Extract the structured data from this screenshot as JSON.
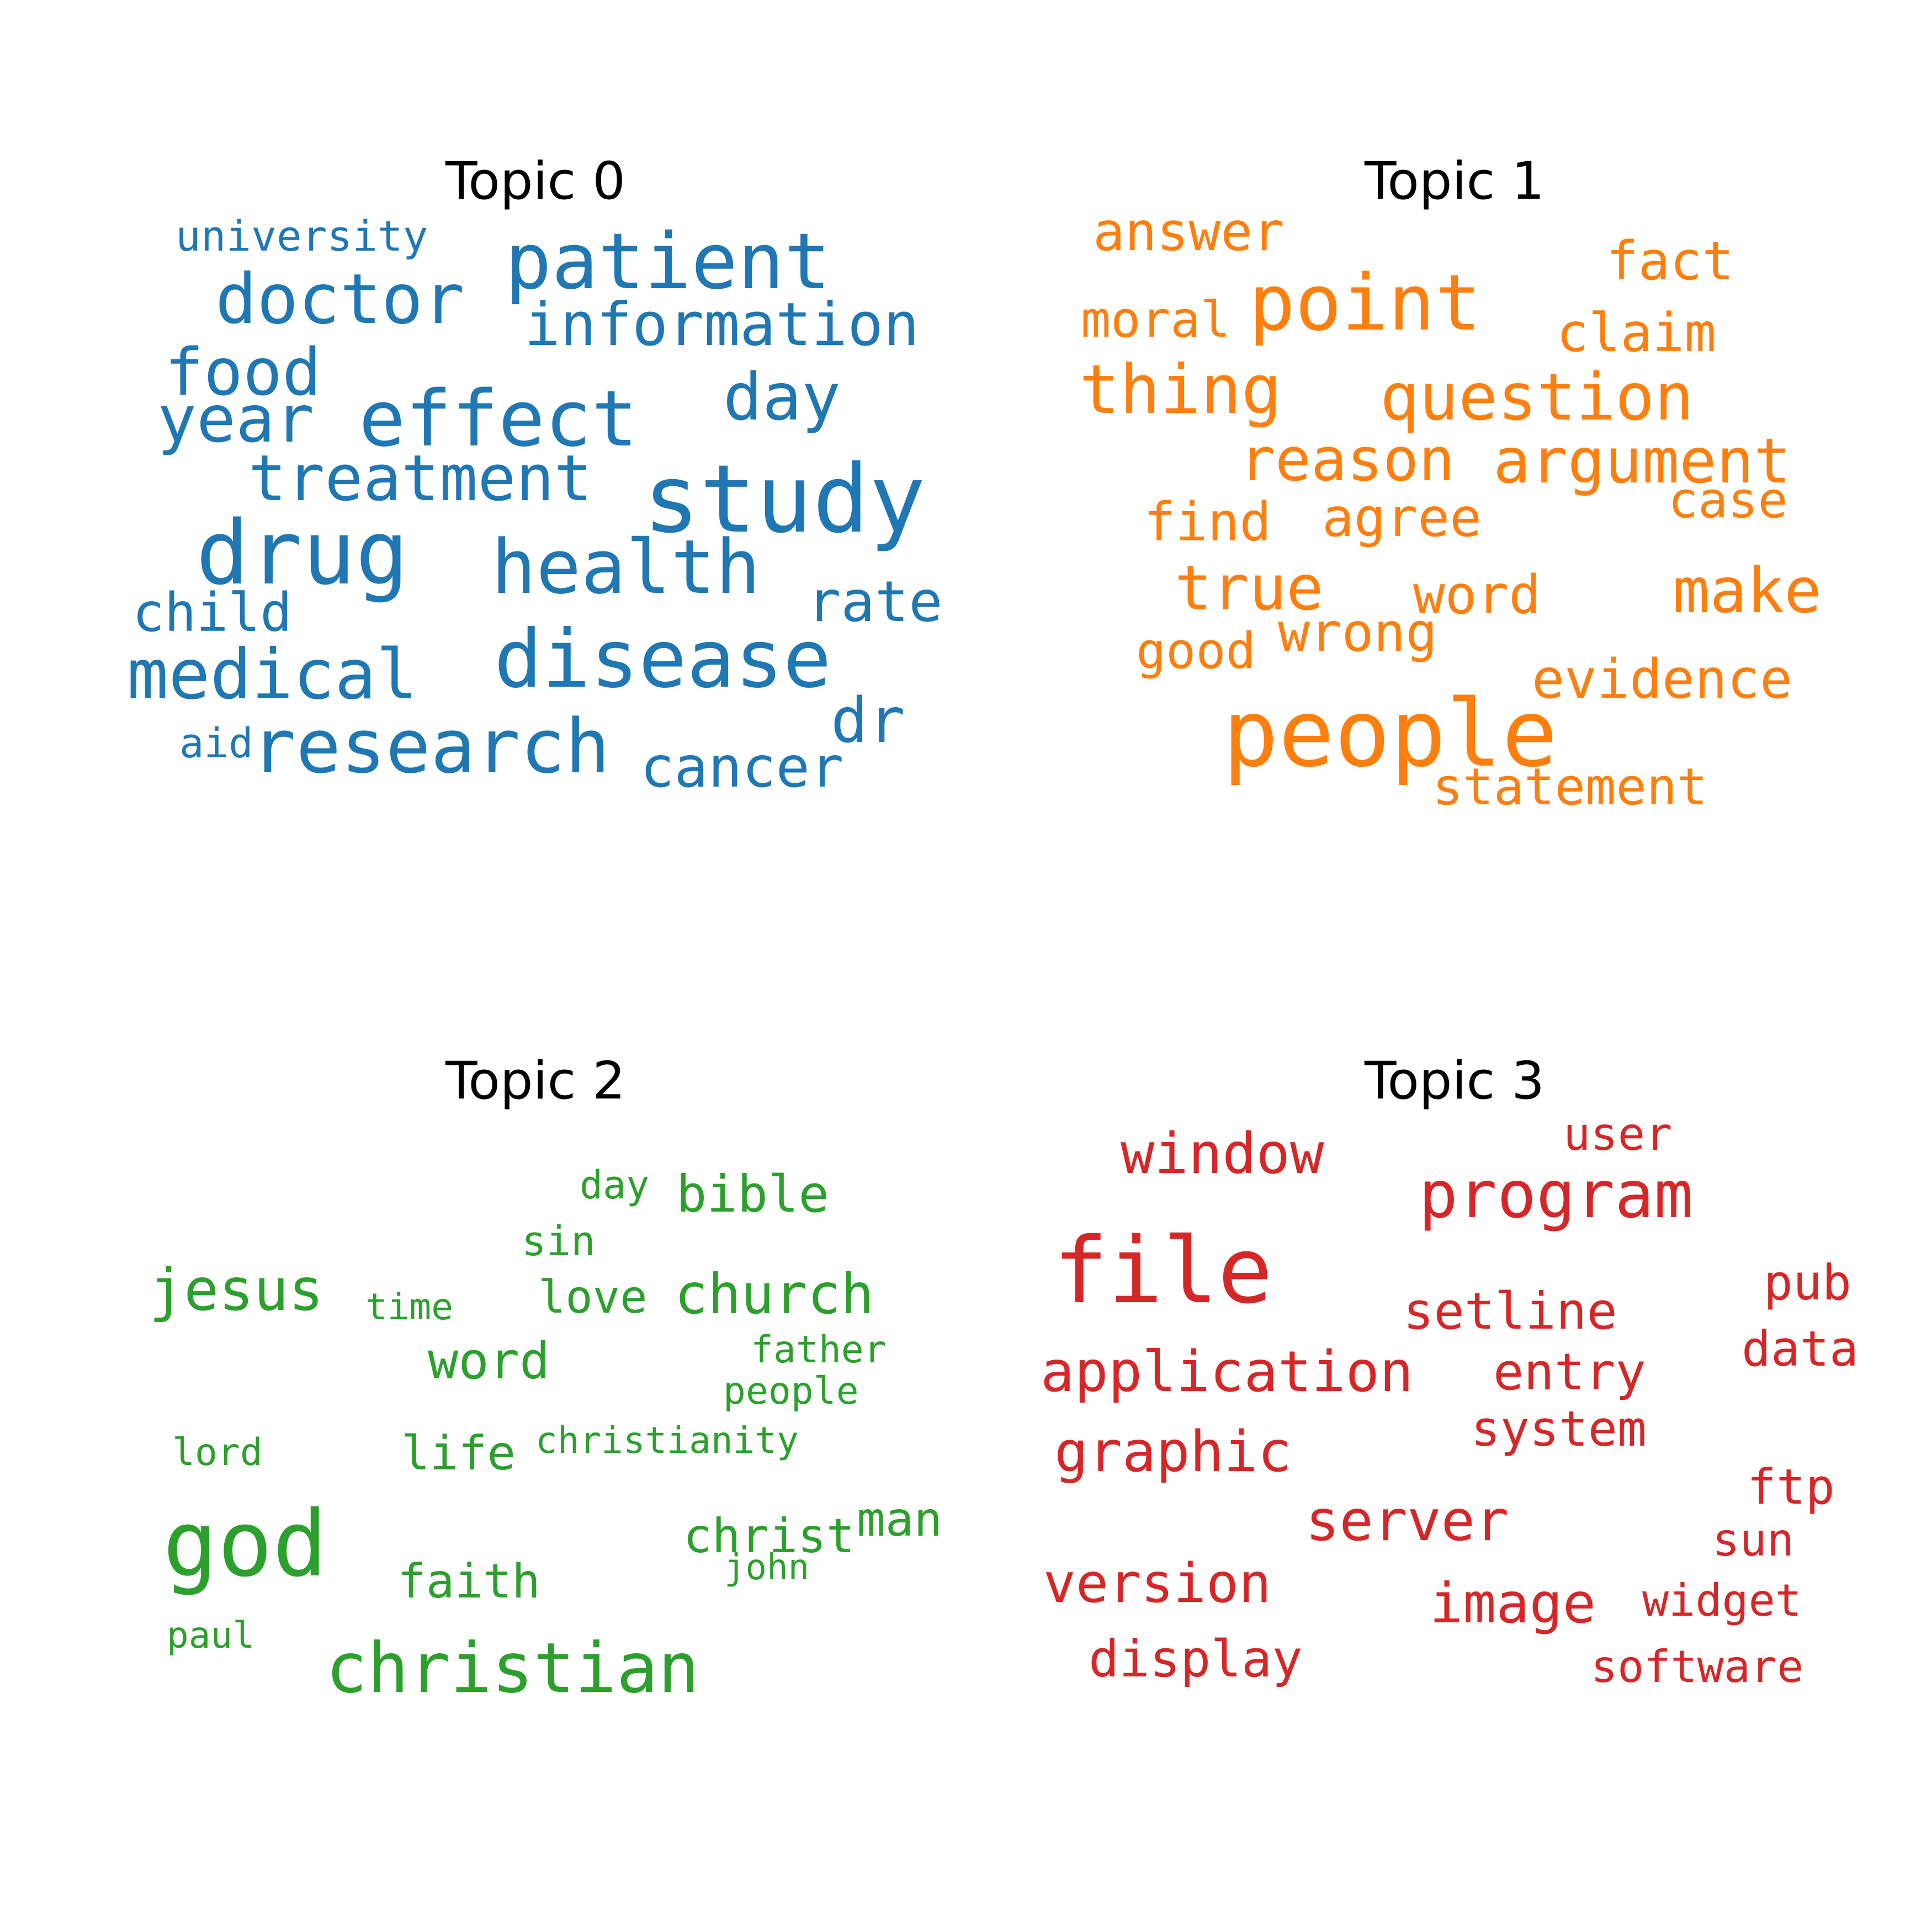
{
  "chart_data": [
    {
      "type": "wordcloud",
      "title": "Topic 0",
      "color": "#1f77b4",
      "words": [
        "study",
        "drug",
        "patient",
        "disease",
        "research",
        "health",
        "effect",
        "doctor",
        "medical",
        "treatment",
        "information",
        "food",
        "day",
        "year",
        "dr",
        "cancer",
        "rate",
        "child",
        "university",
        "aid"
      ]
    },
    {
      "type": "wordcloud",
      "title": "Topic 1",
      "color": "#ff7f0e",
      "words": [
        "people",
        "point",
        "question",
        "thing",
        "argument",
        "make",
        "reason",
        "true",
        "answer",
        "evidence",
        "claim",
        "fact",
        "agree",
        "word",
        "find",
        "wrong",
        "moral",
        "case",
        "statement",
        "good"
      ]
    },
    {
      "type": "wordcloud",
      "title": "Topic 2",
      "color": "#2ca02c",
      "words": [
        "god",
        "christian",
        "jesus",
        "church",
        "bible",
        "word",
        "faith",
        "life",
        "christ",
        "man",
        "love",
        "sin",
        "father",
        "day",
        "people",
        "time",
        "christianity",
        "lord",
        "john",
        "paul"
      ]
    },
    {
      "type": "wordcloud",
      "title": "Topic 3",
      "color": "#d62728",
      "words": [
        "file",
        "program",
        "application",
        "window",
        "graphic",
        "server",
        "version",
        "image",
        "setline",
        "entry",
        "display",
        "system",
        "data",
        "pub",
        "user",
        "ftp",
        "widget",
        "software",
        "sun"
      ]
    }
  ]
}
